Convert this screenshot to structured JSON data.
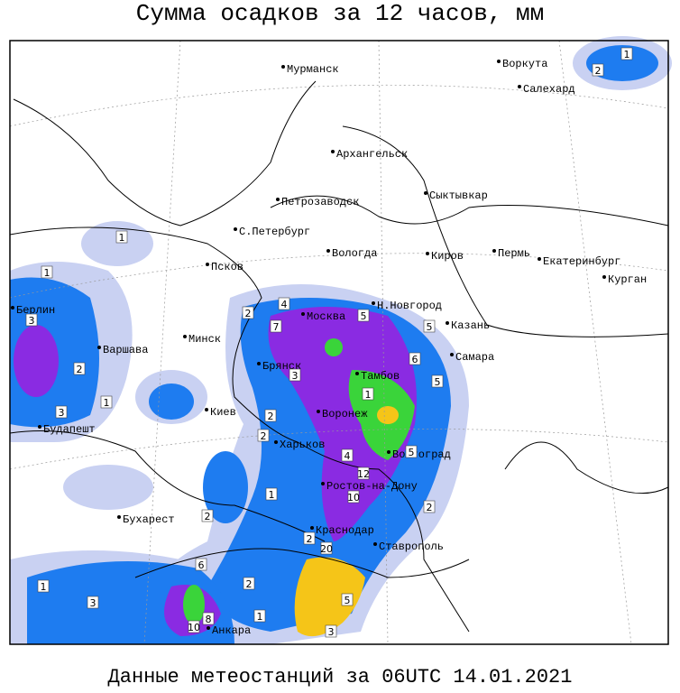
{
  "header": {
    "title": "Сумма осадков за 12 часов, мм"
  },
  "footer": {
    "text": "Данные метеостанций за 06UTC 14.01.2021"
  },
  "cities": [
    "Мурманск",
    "Воркута",
    "Салехард",
    "Архангельск",
    "Петрозаводск",
    "Сыктывкар",
    "С.Петербург",
    "Вологда",
    "Киров",
    "Пермь",
    "Екатеринбург",
    "Псков",
    "Курган",
    "Н.Новгород",
    "Москва",
    "Казань",
    "Берлин",
    "Варшава",
    "Минск",
    "Самара",
    "Брянск",
    "Тамбов",
    "Киев",
    "Воронеж",
    "Будапешт",
    "Харьков",
    "Волгоград",
    "Ростов-на-Дону",
    "Бухарест",
    "Краснодар",
    "Ставрополь",
    "Анкара"
  ],
  "contour_labels": [
    "1",
    "2",
    "1",
    "1",
    "3",
    "4",
    "2",
    "7",
    "5",
    "5",
    "6",
    "5",
    "3",
    "2",
    "1",
    "3",
    "2",
    "2",
    "1",
    "4",
    "12",
    "10",
    "5",
    "2",
    "20",
    "6",
    "10",
    "8",
    "5",
    "2",
    "1",
    "1",
    "3",
    "1",
    "2",
    "3",
    "2"
  ]
}
